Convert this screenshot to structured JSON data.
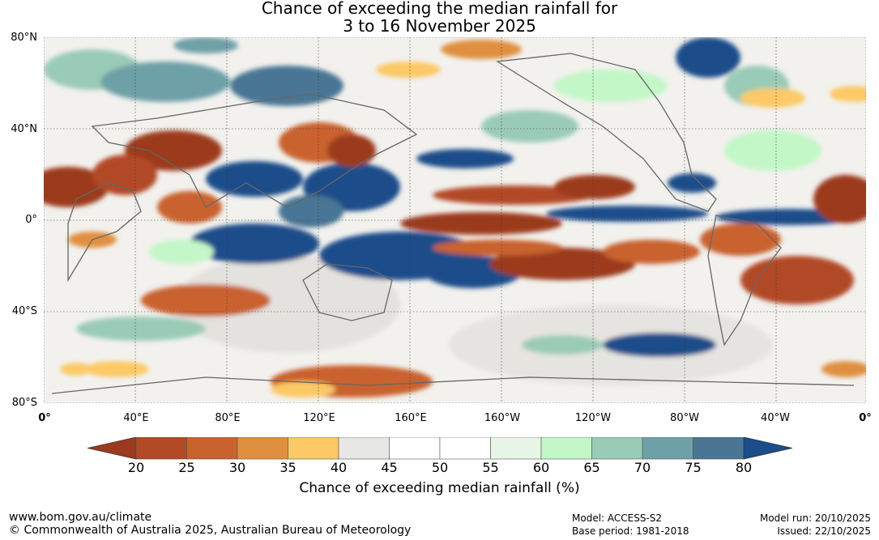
{
  "title": {
    "line1": "Chance of exceeding the median rainfall for",
    "line2": "3 to 16 November 2025"
  },
  "map": {
    "lat_labels": [
      "80°N",
      "40°N",
      "0°",
      "40°S",
      "80°S"
    ],
    "lon_labels": [
      "0°",
      "40°E",
      "80°E",
      "120°E",
      "160°E",
      "160°W",
      "120°W",
      "80°W",
      "40°W",
      "0°"
    ]
  },
  "colorbar": {
    "ticks": [
      "20",
      "25",
      "30",
      "35",
      "40",
      "45",
      "50",
      "55",
      "60",
      "65",
      "70",
      "75",
      "80"
    ],
    "colors": [
      "#9c3a1f",
      "#b24a26",
      "#c9622e",
      "#e08f3f",
      "#fcc966",
      "#e9e7e3",
      "#ffffff",
      "#ffffff",
      "#e8f6e8",
      "#c3f7c7",
      "#9acbb6",
      "#6ea0a7",
      "#4a7694",
      "#1a4d8a"
    ],
    "label": "Chance of exceeding median rainfall (%)"
  },
  "footer": {
    "website": "www.bom.gov.au/climate",
    "copyright": "© Commonwealth of Australia 2025, Australian Bureau of Meteorology",
    "model": "Model: ACCESS-S2",
    "base_period": "Base period: 1981-2018",
    "model_run": "Model run: 20/10/2025",
    "issued": "Issued: 22/10/2025"
  }
}
